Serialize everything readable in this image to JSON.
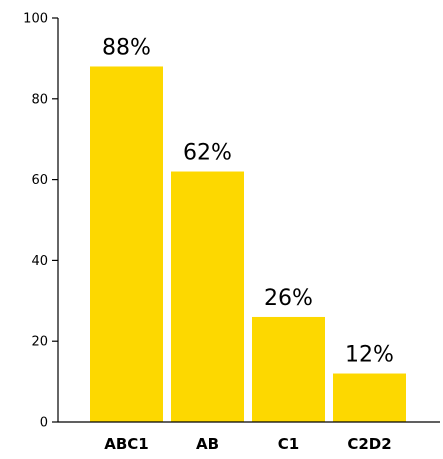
{
  "chart_data": {
    "type": "bar",
    "categories": [
      "ABC1",
      "AB",
      "C1",
      "C2D2"
    ],
    "values": [
      88,
      62,
      26,
      12
    ],
    "data_labels": [
      "88%",
      "62%",
      "26%",
      "12%"
    ],
    "title": "",
    "xlabel": "",
    "ylabel": "",
    "ylim": [
      0,
      100
    ],
    "yticks": [
      0,
      20,
      40,
      60,
      80,
      100
    ],
    "ytick_labels": [
      "0",
      "20",
      "40",
      "60",
      "80",
      "100"
    ],
    "grid": false,
    "legend": "none",
    "colors": {
      "bar": "#FDD800",
      "axis": "#000000",
      "text": "#000000"
    }
  }
}
